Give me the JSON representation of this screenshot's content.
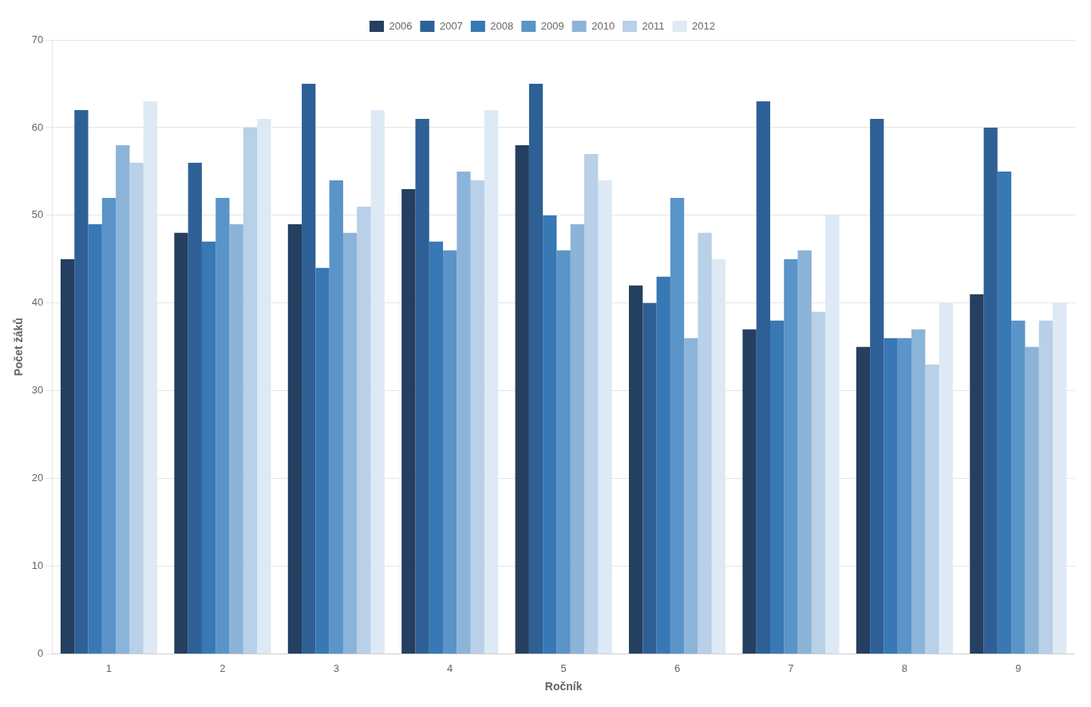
{
  "chart_data": {
    "type": "bar",
    "xlabel": "Ročník",
    "ylabel": "Počet žáků",
    "categories": [
      "1",
      "2",
      "3",
      "4",
      "5",
      "6",
      "7",
      "8",
      "9"
    ],
    "series": [
      {
        "name": "2006",
        "color": "#243F60",
        "values": [
          45,
          48,
          49,
          53,
          58,
          42,
          37,
          35,
          41
        ]
      },
      {
        "name": "2007",
        "color": "#2E6096",
        "values": [
          62,
          56,
          65,
          61,
          65,
          40,
          63,
          61,
          60
        ]
      },
      {
        "name": "2008",
        "color": "#3878B4",
        "values": [
          49,
          47,
          44,
          47,
          50,
          43,
          38,
          36,
          55
        ]
      },
      {
        "name": "2009",
        "color": "#5A94C8",
        "values": [
          52,
          52,
          54,
          46,
          46,
          52,
          45,
          36,
          38
        ]
      },
      {
        "name": "2010",
        "color": "#8CB4D8",
        "values": [
          58,
          49,
          48,
          55,
          49,
          36,
          46,
          37,
          35
        ]
      },
      {
        "name": "2011",
        "color": "#B8D0E8",
        "values": [
          56,
          60,
          51,
          54,
          57,
          48,
          39,
          33,
          38
        ]
      },
      {
        "name": "2012",
        "color": "#DDEAF5",
        "values": [
          63,
          61,
          62,
          62,
          54,
          45,
          50,
          40,
          40
        ]
      }
    ],
    "ylim": [
      0,
      70
    ],
    "yticks": [
      0,
      10,
      20,
      30,
      40,
      50,
      60,
      70
    ],
    "grid": true,
    "legend": "top"
  }
}
